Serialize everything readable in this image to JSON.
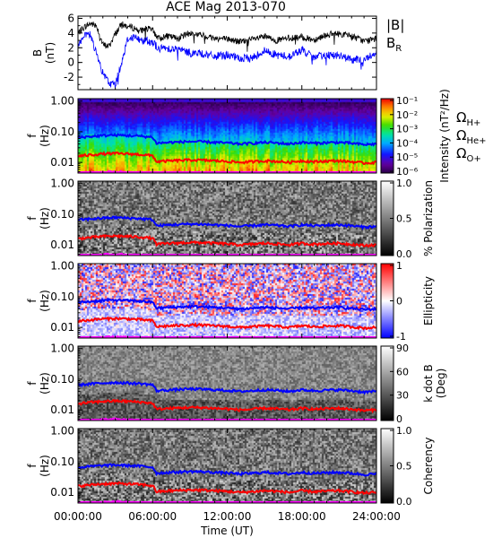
{
  "title": "ACE Mag 2013-070",
  "x_axis": {
    "ticks": [
      "00:00:00",
      "06:00:00",
      "12:00:00",
      "18:00:00",
      "24:00:00"
    ],
    "label": "Time (UT)",
    "hours": [
      0,
      6,
      12,
      18,
      24
    ]
  },
  "colors": {
    "b_total": "#000000",
    "b_r": "#0000ff",
    "omega_h": "#0000ff",
    "omega_he": "#ff0000",
    "omega_o": "#ff00ff"
  },
  "top_panel": {
    "ylabel_line1": "B",
    "ylabel_line2": "(nT)",
    "yticks": [
      "6",
      "4",
      "2",
      "0",
      "-2"
    ],
    "ytick_values": [
      6,
      4,
      2,
      0,
      -2
    ],
    "ylim": [
      -3.7,
      6.3
    ],
    "legend": [
      {
        "text": "|B|",
        "sub": "",
        "color": "#000000"
      },
      {
        "text": "B",
        "sub": "R",
        "color": "#0000ff"
      }
    ]
  },
  "spectrogram_panels": [
    {
      "id": "intensity",
      "yticks": [
        "1.00",
        "0.10",
        "0.01"
      ],
      "ylabel_line1": "f",
      "ylabel_line2": "(Hz)",
      "colorbar_ticks": [
        "10⁻¹",
        "10⁻²",
        "10⁻³",
        "10⁻⁴",
        "10⁻⁵",
        "10⁻⁶"
      ],
      "colorbar_label": "Intensity (nT²/Hz)",
      "colormap": "rainbow",
      "legend": [
        {
          "text": "Ω",
          "sub": "H+",
          "color": "#0000ff"
        },
        {
          "text": "Ω",
          "sub": "He+",
          "color": "#ff0000"
        },
        {
          "text": "Ω",
          "sub": "O+",
          "color": "#ff00ff"
        }
      ]
    },
    {
      "id": "polarization",
      "yticks": [
        "1.00",
        "0.10",
        "0.01"
      ],
      "ylabel_line1": "f",
      "ylabel_line2": "(Hz)",
      "colorbar_ticks": [
        "1.0",
        "0.5",
        "0.0"
      ],
      "colorbar_label": "% Polarization",
      "colormap": "gray",
      "legend": []
    },
    {
      "id": "ellipticity",
      "yticks": [
        "1.00",
        "0.10",
        "0.01"
      ],
      "ylabel_line1": "f",
      "ylabel_line2": "(Hz)",
      "colorbar_ticks": [
        "1",
        "0",
        "-1"
      ],
      "colorbar_label": "Ellipticity",
      "colormap": "bwr",
      "legend": []
    },
    {
      "id": "kdotb",
      "yticks": [
        "1.00",
        "0.10",
        "0.01"
      ],
      "ylabel_line1": "f",
      "ylabel_line2": "(Hz)",
      "colorbar_ticks": [
        "90",
        "60",
        "30",
        "0"
      ],
      "colorbar_label_line1": "k dot B",
      "colorbar_label_line2": "(Deg)",
      "colormap": "gray",
      "legend": []
    },
    {
      "id": "coherency",
      "yticks": [
        "1.00",
        "0.10",
        "0.01"
      ],
      "ylabel_line1": "f",
      "ylabel_line2": "(Hz)",
      "colorbar_ticks": [
        "1.0",
        "0.5",
        "0.0"
      ],
      "colorbar_label": "Coherency",
      "colormap": "gray",
      "legend": []
    }
  ],
  "chart_data": [
    {
      "type": "line",
      "title": "ACE Mag 2013-070",
      "xlabel": "Time (UT)",
      "ylabel": "B (nT)",
      "xlim_hours": [
        0,
        24
      ],
      "ylim": [
        -3.7,
        6.3
      ],
      "series": [
        {
          "name": "|B|",
          "x_hours": [
            0,
            0.5,
            1,
            1.5,
            2,
            2.5,
            3,
            3.5,
            4,
            4.5,
            5,
            5.5,
            6,
            6.5,
            7,
            8,
            9,
            10,
            11,
            12,
            13,
            14,
            15,
            16,
            17,
            18,
            19,
            20,
            21,
            22,
            23,
            24
          ],
          "values": [
            4.0,
            4.8,
            5.3,
            5.0,
            2.4,
            2.2,
            3.9,
            5.2,
            4.9,
            4.7,
            4.3,
            4.6,
            4.4,
            3.2,
            3.6,
            3.3,
            4.0,
            3.7,
            3.3,
            3.2,
            2.8,
            3.1,
            3.5,
            3.0,
            3.3,
            3.4,
            3.1,
            3.8,
            3.9,
            3.6,
            2.9,
            3.2
          ]
        },
        {
          "name": "B_R",
          "x_hours": [
            0,
            0.5,
            1,
            1.5,
            2,
            2.5,
            3,
            3.5,
            4,
            4.5,
            5,
            5.5,
            6,
            6.5,
            7,
            8,
            9,
            10,
            11,
            12,
            13,
            14,
            15,
            16,
            17,
            18,
            19,
            20,
            21,
            22,
            23,
            24
          ],
          "values": [
            2.5,
            3.5,
            3.8,
            1.0,
            -1.5,
            -2.8,
            -3.0,
            0.0,
            3.2,
            3.5,
            3.0,
            3.0,
            2.8,
            1.8,
            2.0,
            1.8,
            1.3,
            1.2,
            0.8,
            1.0,
            0.5,
            0.6,
            1.6,
            1.0,
            0.8,
            1.7,
            0.6,
            1.1,
            0.9,
            0.4,
            0.3,
            1.5
          ]
        }
      ]
    },
    {
      "type": "heatmap",
      "ylabel": "f (Hz)",
      "ylim_hz": [
        0.0045,
        1.2
      ],
      "yscale": "log",
      "gyrofrequency_lines": [
        {
          "name": "ΩH+",
          "x_hours": [
            0,
            1,
            2,
            3,
            4,
            5,
            6,
            6.3,
            7,
            8,
            9,
            10,
            11,
            12,
            13,
            14,
            15,
            16,
            17,
            18,
            19,
            20,
            21,
            22,
            23,
            24
          ],
          "f_hz": [
            0.065,
            0.07,
            0.075,
            0.078,
            0.075,
            0.072,
            0.066,
            0.042,
            0.044,
            0.046,
            0.048,
            0.047,
            0.045,
            0.043,
            0.04,
            0.042,
            0.045,
            0.043,
            0.04,
            0.045,
            0.042,
            0.044,
            0.045,
            0.042,
            0.038,
            0.04
          ]
        },
        {
          "name": "ΩHe+",
          "x_hours": [
            0,
            1,
            2,
            3,
            4,
            5,
            6,
            6.3,
            7,
            8,
            9,
            10,
            11,
            12,
            13,
            14,
            15,
            16,
            17,
            18,
            19,
            20,
            21,
            22,
            23,
            24
          ],
          "f_hz": [
            0.016,
            0.0175,
            0.019,
            0.0195,
            0.019,
            0.018,
            0.0165,
            0.0105,
            0.011,
            0.0115,
            0.012,
            0.0118,
            0.0113,
            0.0108,
            0.01,
            0.0105,
            0.0113,
            0.0108,
            0.01,
            0.0113,
            0.0105,
            0.011,
            0.0113,
            0.0105,
            0.0095,
            0.01
          ]
        },
        {
          "name": "ΩO+",
          "x_hours": [
            0,
            1,
            2,
            3,
            4,
            5,
            6,
            6.3,
            7,
            8,
            9,
            10,
            11,
            12,
            13,
            14,
            15,
            16,
            17,
            18,
            19,
            20,
            21,
            22,
            23,
            24
          ],
          "f_hz": [
            0.0041,
            0.0044,
            0.0047,
            0.0049,
            0.0047,
            0.0045,
            0.0041,
            0.0026,
            0.0028,
            0.0029,
            0.003,
            0.003,
            0.0028,
            0.0027,
            0.0025,
            0.0026,
            0.0028,
            0.0027,
            0.0025,
            0.0028,
            0.0026,
            0.0028,
            0.0028,
            0.0026,
            0.0024,
            0.0025
          ]
        }
      ]
    }
  ]
}
